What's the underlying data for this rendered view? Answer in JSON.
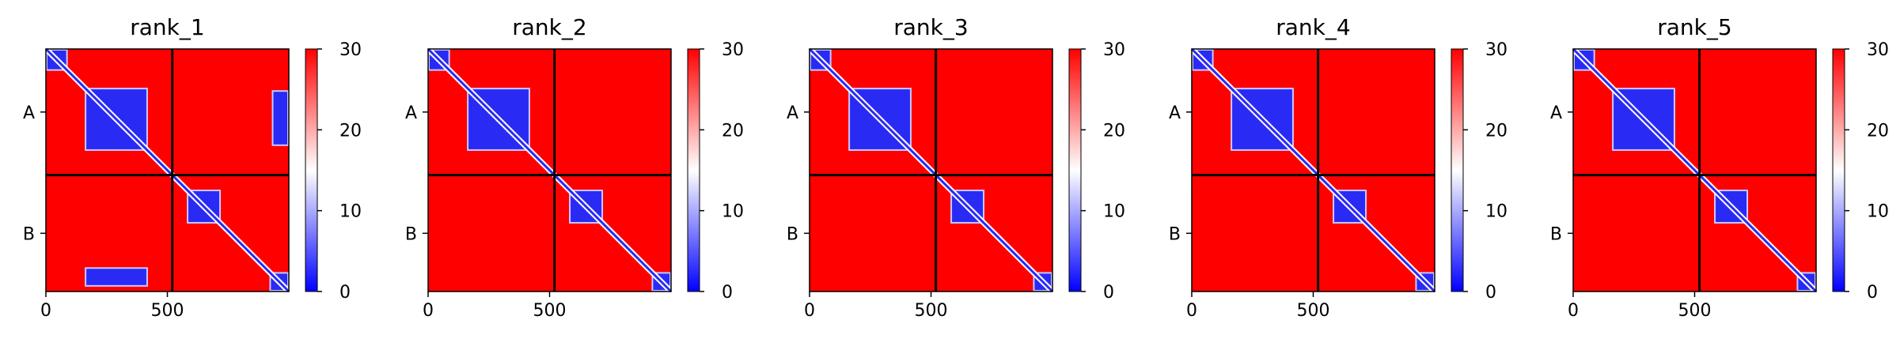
{
  "chart_data": [
    {
      "type": "heatmap",
      "title": "rank_1",
      "row_labels": [
        "A",
        "B"
      ],
      "x_ticks": [
        0,
        500
      ],
      "boundary": 520,
      "total_length": 1000,
      "colorbar": {
        "min": 0,
        "max": 30,
        "ticks": [
          0,
          10,
          20,
          30
        ],
        "colors": [
          "#0000ff",
          "#ffffff",
          "#ff0000"
        ]
      },
      "low_regions": [
        {
          "x": [
            0,
            90
          ],
          "y": [
            0,
            90
          ]
        },
        {
          "x": [
            160,
            420
          ],
          "y": [
            160,
            420
          ]
        },
        {
          "x": [
            580,
            720
          ],
          "y": [
            580,
            720
          ]
        },
        {
          "x": [
            920,
            1000
          ],
          "y": [
            920,
            1000
          ]
        },
        {
          "x": [
            930,
            1000
          ],
          "y": [
            170,
            400
          ]
        },
        {
          "x": [
            160,
            420
          ],
          "y": [
            900,
            980
          ]
        }
      ]
    },
    {
      "type": "heatmap",
      "title": "rank_2",
      "row_labels": [
        "A",
        "B"
      ],
      "x_ticks": [
        0,
        500
      ],
      "boundary": 520,
      "total_length": 1000,
      "colorbar": {
        "min": 0,
        "max": 30,
        "ticks": [
          0,
          10,
          20,
          30
        ],
        "colors": [
          "#0000ff",
          "#ffffff",
          "#ff0000"
        ]
      },
      "low_regions": [
        {
          "x": [
            0,
            90
          ],
          "y": [
            0,
            90
          ]
        },
        {
          "x": [
            160,
            420
          ],
          "y": [
            160,
            420
          ]
        },
        {
          "x": [
            580,
            720
          ],
          "y": [
            580,
            720
          ]
        },
        {
          "x": [
            920,
            1000
          ],
          "y": [
            920,
            1000
          ]
        }
      ]
    },
    {
      "type": "heatmap",
      "title": "rank_3",
      "row_labels": [
        "A",
        "B"
      ],
      "x_ticks": [
        0,
        500
      ],
      "boundary": 520,
      "total_length": 1000,
      "colorbar": {
        "min": 0,
        "max": 30,
        "ticks": [
          0,
          10,
          20,
          30
        ],
        "colors": [
          "#0000ff",
          "#ffffff",
          "#ff0000"
        ]
      },
      "low_regions": [
        {
          "x": [
            0,
            90
          ],
          "y": [
            0,
            90
          ]
        },
        {
          "x": [
            160,
            420
          ],
          "y": [
            160,
            420
          ]
        },
        {
          "x": [
            580,
            720
          ],
          "y": [
            580,
            720
          ]
        },
        {
          "x": [
            920,
            1000
          ],
          "y": [
            920,
            1000
          ]
        }
      ]
    },
    {
      "type": "heatmap",
      "title": "rank_4",
      "row_labels": [
        "A",
        "B"
      ],
      "x_ticks": [
        0,
        500
      ],
      "boundary": 520,
      "total_length": 1000,
      "colorbar": {
        "min": 0,
        "max": 30,
        "ticks": [
          0,
          10,
          20,
          30
        ],
        "colors": [
          "#0000ff",
          "#ffffff",
          "#ff0000"
        ]
      },
      "low_regions": [
        {
          "x": [
            0,
            90
          ],
          "y": [
            0,
            90
          ]
        },
        {
          "x": [
            160,
            420
          ],
          "y": [
            160,
            420
          ]
        },
        {
          "x": [
            580,
            720
          ],
          "y": [
            580,
            720
          ]
        },
        {
          "x": [
            920,
            1000
          ],
          "y": [
            920,
            1000
          ]
        }
      ]
    },
    {
      "type": "heatmap",
      "title": "rank_5",
      "row_labels": [
        "A",
        "B"
      ],
      "x_ticks": [
        0,
        500
      ],
      "boundary": 520,
      "total_length": 1000,
      "colorbar": {
        "min": 0,
        "max": 30,
        "ticks": [
          0,
          10,
          20,
          30
        ],
        "colors": [
          "#0000ff",
          "#ffffff",
          "#ff0000"
        ]
      },
      "low_regions": [
        {
          "x": [
            0,
            90
          ],
          "y": [
            0,
            90
          ]
        },
        {
          "x": [
            160,
            420
          ],
          "y": [
            160,
            420
          ]
        },
        {
          "x": [
            580,
            720
          ],
          "y": [
            580,
            720
          ]
        },
        {
          "x": [
            920,
            1000
          ],
          "y": [
            920,
            1000
          ]
        }
      ]
    }
  ]
}
